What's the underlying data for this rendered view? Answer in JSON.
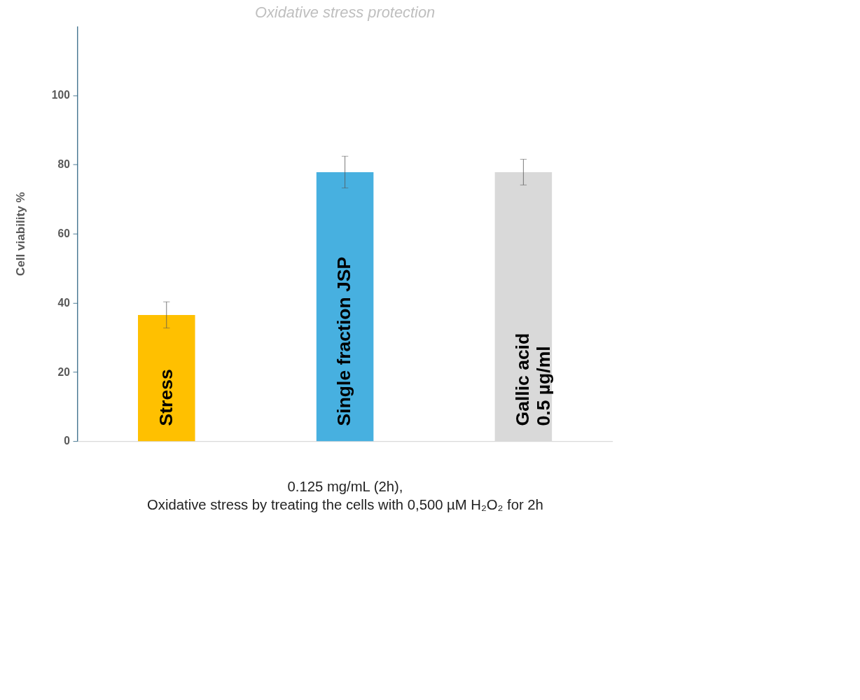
{
  "chart_data": {
    "type": "bar",
    "title": "Oxidative stress protection",
    "xlabel": "0.125 mg/mL (2h),\nOxidative stress by treating the cells with 0,500 µM H₂O₂ for 2h",
    "ylabel": "Cell viability %",
    "categories": [
      "Stress",
      "Single fraction JSP",
      "Gallic acid\n0.5 µg/ml"
    ],
    "values": [
      36.5,
      77.8,
      77.8
    ],
    "errors": [
      3.8,
      4.6,
      3.7
    ],
    "colors": [
      "#ffc000",
      "#47b0e0",
      "#d9d9d9"
    ],
    "ylim": [
      0,
      120
    ],
    "yticks": [
      0,
      20,
      40,
      60,
      80,
      100
    ],
    "grid": false,
    "legend": false,
    "tick_labels": "y"
  }
}
